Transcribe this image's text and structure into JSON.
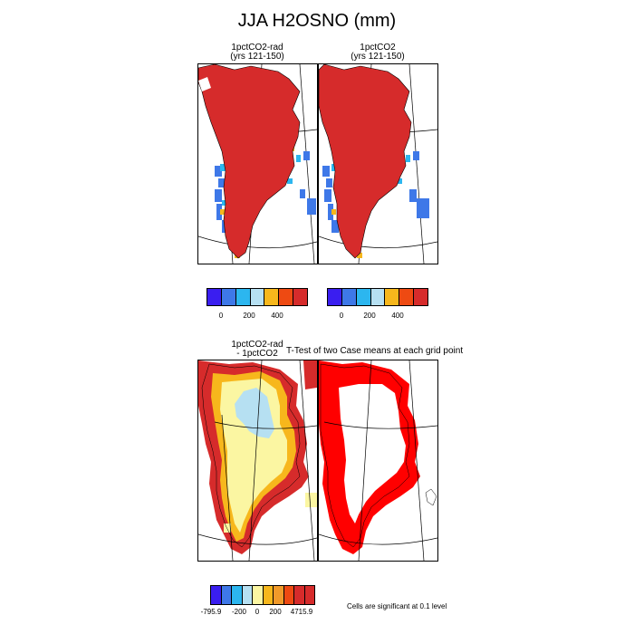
{
  "figure": {
    "title": "JJA H2OSNO (mm)"
  },
  "panels": {
    "p1": {
      "title_line1": "1pctCO2-rad",
      "title_line2": "(yrs 121-150)"
    },
    "p2": {
      "title_line1": "1pctCO2",
      "title_line2": "(yrs 121-150)"
    },
    "p3": {
      "title_line1": "1pctCO2-rad",
      "title_line2": "- 1pctCO2"
    },
    "p4": {
      "title": "T-Test of two Case means at each grid point"
    }
  },
  "colorbars": {
    "top": {
      "colors": [
        "#3a1ef0",
        "#3e78e8",
        "#2cb6ef",
        "#b6e0f2",
        "#f7b71c",
        "#ee4a12",
        "#d62b2b"
      ],
      "ticks": [
        "0",
        "200",
        "400"
      ]
    },
    "bottom": {
      "colors": [
        "#3a1ef0",
        "#3e78e8",
        "#2cb6ef",
        "#b6e0f2",
        "#fbf6a2",
        "#f7b71c",
        "#f19a2a",
        "#ee4a12",
        "#d62b2b",
        "#d62b2b"
      ],
      "ticks": [
        "-795.9",
        "-200",
        "0",
        "200",
        "4715.9"
      ]
    }
  },
  "significance_note": "Cells are significant at 0.1 level",
  "colors": {
    "snow_high": "#d62b2b",
    "snow_low_blue": "#3e78e8",
    "light_blue": "#b6e0f2",
    "cyan": "#2cb6ef",
    "yellow_pale": "#fbf6a2",
    "orange": "#f7b71c",
    "significance_red": "#ff0000"
  }
}
